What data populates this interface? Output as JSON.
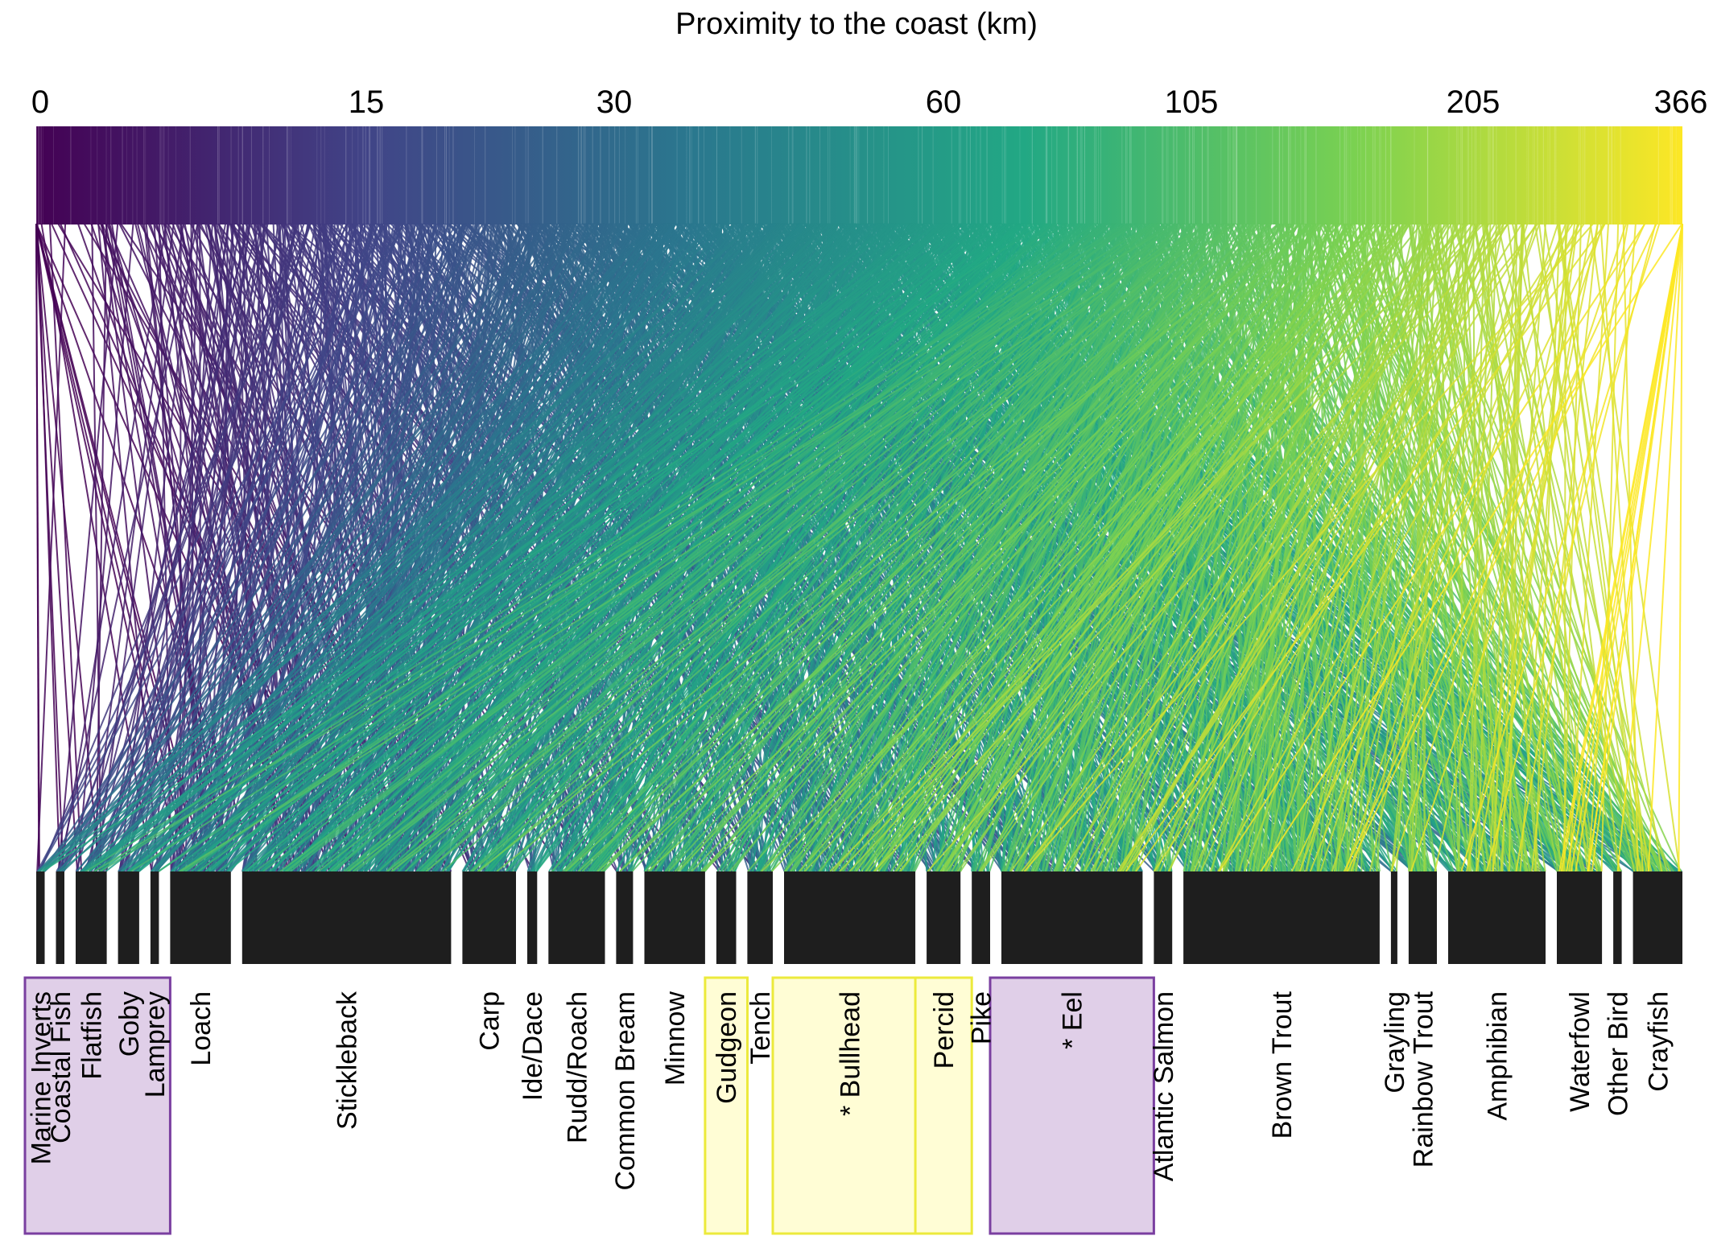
{
  "chart_data": {
    "type": "parallel-sets",
    "title": "Proximity to the coast (km)",
    "axis_ticks": [
      "0",
      "15",
      "30",
      "60",
      "105",
      "205",
      "366"
    ],
    "axis_range_km": [
      0,
      366
    ],
    "colormap": [
      "#440154",
      "#414487",
      "#2a788e",
      "#22a884",
      "#7ad151",
      "#fde725"
    ],
    "categories": [
      {
        "label": "Marine Inverts",
        "weight": 0.6,
        "group": "purple"
      },
      {
        "label": "Coastal Fish",
        "weight": 0.6,
        "group": "purple"
      },
      {
        "label": "Flatfish",
        "weight": 2.2,
        "group": "purple"
      },
      {
        "label": "Goby",
        "weight": 1.5,
        "group": "purple"
      },
      {
        "label": "Lamprey",
        "weight": 0.6,
        "group": "purple"
      },
      {
        "label": "Loach",
        "weight": 4.3,
        "group": "none"
      },
      {
        "label": "Stickleback",
        "weight": 14.8,
        "group": "none"
      },
      {
        "label": "Carp",
        "weight": 3.8,
        "group": "none"
      },
      {
        "label": "Ide/Dace",
        "weight": 0.7,
        "group": "none"
      },
      {
        "label": "Rudd/Roach",
        "weight": 4.0,
        "group": "none"
      },
      {
        "label": "Common Bream",
        "weight": 1.2,
        "group": "none"
      },
      {
        "label": "Minnow",
        "weight": 4.3,
        "group": "none"
      },
      {
        "label": "Gudgeon",
        "weight": 1.4,
        "group": "yellow"
      },
      {
        "label": "Tench",
        "weight": 1.8,
        "group": "none"
      },
      {
        "label": "* Bullhead",
        "weight": 9.3,
        "group": "yellow"
      },
      {
        "label": "Percid",
        "weight": 2.4,
        "group": "yellow"
      },
      {
        "label": "Pike",
        "weight": 1.3,
        "group": "none"
      },
      {
        "label": "* Eel",
        "weight": 10.0,
        "group": "purple"
      },
      {
        "label": "Atlantic Salmon",
        "weight": 1.3,
        "group": "none"
      },
      {
        "label": "Brown Trout",
        "weight": 13.9,
        "group": "none"
      },
      {
        "label": "Grayling",
        "weight": 0.4,
        "group": "none"
      },
      {
        "label": "Rainbow Trout",
        "weight": 2.0,
        "group": "none"
      },
      {
        "label": "Amphibian",
        "weight": 6.9,
        "group": "none"
      },
      {
        "label": "Waterfowl",
        "weight": 3.2,
        "group": "none"
      },
      {
        "label": "Other Bird",
        "weight": 0.6,
        "group": "none"
      },
      {
        "label": "Crayfish",
        "weight": 3.5,
        "group": "none"
      }
    ]
  }
}
